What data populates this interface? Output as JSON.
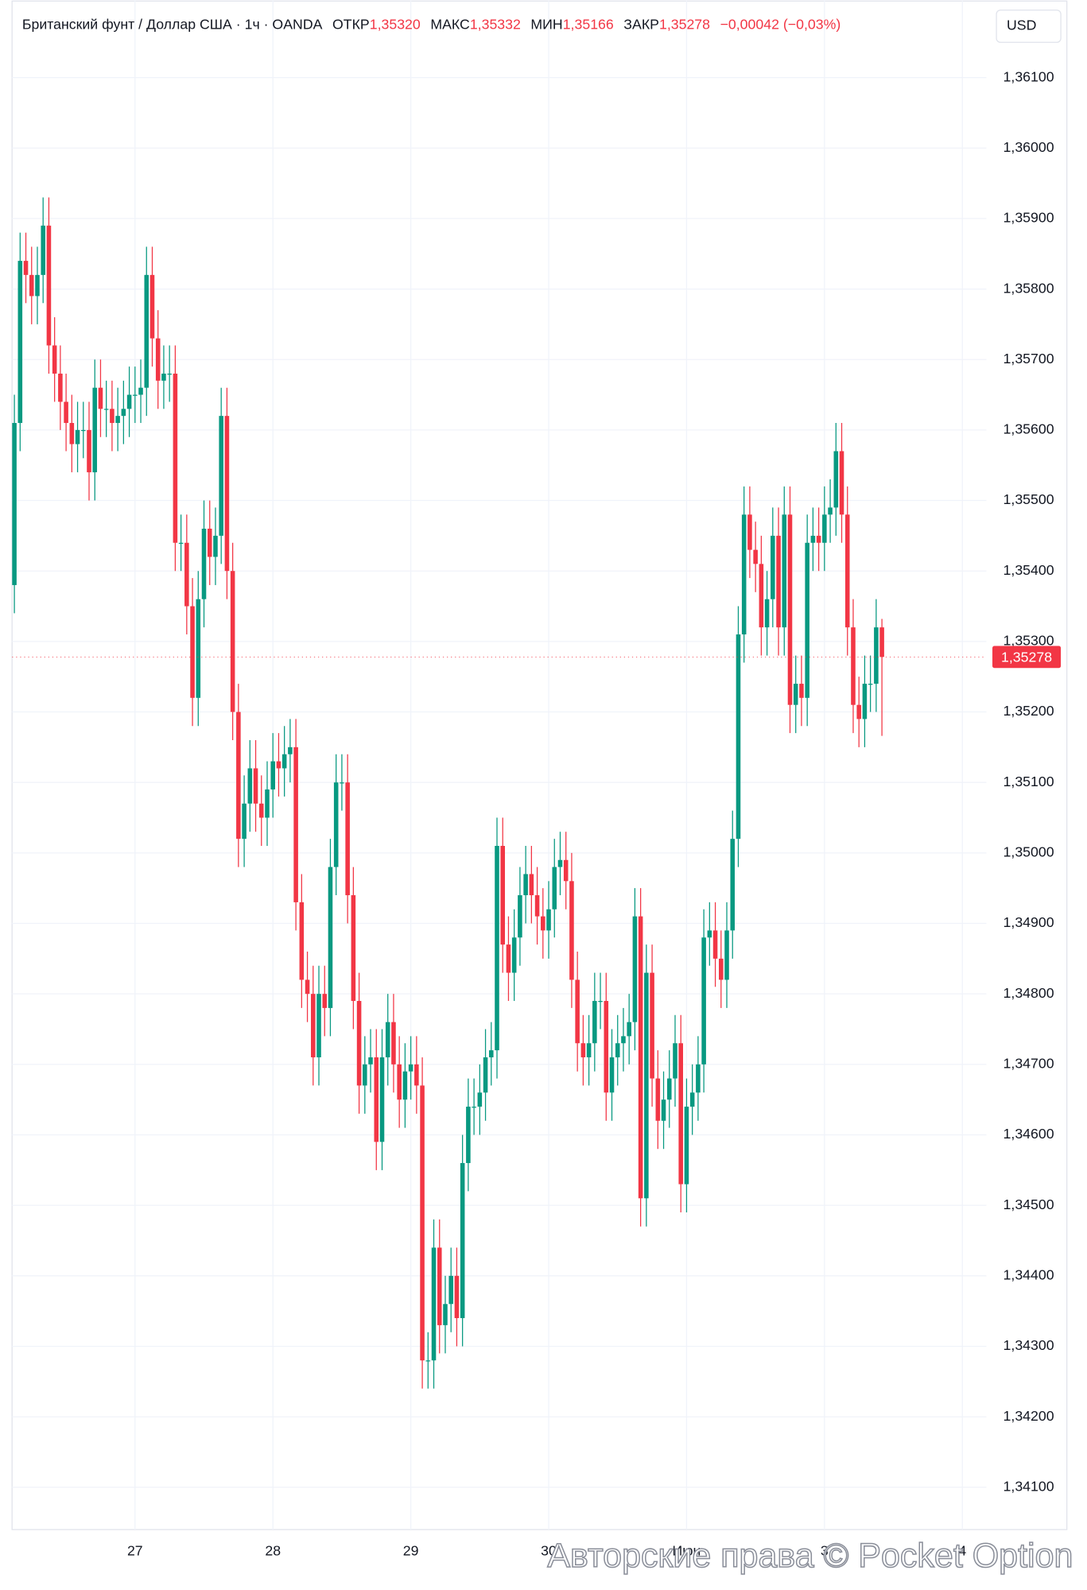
{
  "chart_data": {
    "type": "candlestick",
    "title": "Британский фунт / Доллар США · 1ч · OANDA",
    "header": {
      "open_label": "ОТКР",
      "open": "1,35320",
      "high_label": "МАКС",
      "high": "1,35332",
      "low_label": "МИН",
      "low": "1,35166",
      "close_label": "ЗАКР",
      "close": "1,35278",
      "change": "−0,00042 (−0,03%)"
    },
    "currency": "USD",
    "last_price_label": "1,35278",
    "watermark": "Авторские права © Pocket Option",
    "up_color": "#089981",
    "down_color": "#f23645",
    "grid": true,
    "xlim": [
      2.6,
      171.3
    ],
    "xticks": [
      {
        "value": 24,
        "label": "27"
      },
      {
        "value": 48,
        "label": "28"
      },
      {
        "value": 72,
        "label": "29"
      },
      {
        "value": 96,
        "label": "30"
      },
      {
        "value": 120,
        "label": "Июн"
      },
      {
        "value": 144,
        "label": "3"
      },
      {
        "value": 168,
        "label": "4"
      }
    ],
    "ylim": [
      1.3404,
      1.3621
    ],
    "yticks": [
      {
        "value": 1.361,
        "label": "1,36100"
      },
      {
        "value": 1.36,
        "label": "1,36000"
      },
      {
        "value": 1.359,
        "label": "1,35900"
      },
      {
        "value": 1.358,
        "label": "1,35800"
      },
      {
        "value": 1.357,
        "label": "1,35700"
      },
      {
        "value": 1.356,
        "label": "1,35600"
      },
      {
        "value": 1.355,
        "label": "1,35500"
      },
      {
        "value": 1.354,
        "label": "1,35400"
      },
      {
        "value": 1.353,
        "label": "1,35300"
      },
      {
        "value": 1.352,
        "label": "1,35200"
      },
      {
        "value": 1.351,
        "label": "1,35100"
      },
      {
        "value": 1.35,
        "label": "1,35000"
      },
      {
        "value": 1.349,
        "label": "1,34900"
      },
      {
        "value": 1.348,
        "label": "1,34800"
      },
      {
        "value": 1.347,
        "label": "1,34700"
      },
      {
        "value": 1.346,
        "label": "1,34600"
      },
      {
        "value": 1.345,
        "label": "1,34500"
      },
      {
        "value": 1.344,
        "label": "1,34400"
      },
      {
        "value": 1.343,
        "label": "1,34300"
      },
      {
        "value": 1.342,
        "label": "1,34200"
      },
      {
        "value": 1.341,
        "label": "1,34100"
      }
    ],
    "x": [
      3,
      4,
      5,
      6,
      7,
      8,
      9,
      10,
      11,
      12,
      13,
      14,
      15,
      16,
      17,
      18,
      19,
      20,
      21,
      22,
      23,
      24,
      25,
      26,
      27,
      28,
      29,
      30,
      31,
      32,
      33,
      34,
      35,
      36,
      37,
      38,
      39,
      40,
      41,
      42,
      43,
      44,
      45,
      46,
      47,
      48,
      49,
      50,
      51,
      52,
      53,
      54,
      55,
      56,
      57,
      58,
      59,
      60,
      61,
      62,
      63,
      64,
      65,
      66,
      67,
      68,
      69,
      70,
      71,
      72,
      73,
      74,
      75,
      76,
      77,
      78,
      79,
      80,
      81,
      82,
      83,
      84,
      85,
      86,
      87,
      88,
      89,
      90,
      91,
      92,
      93,
      94,
      95,
      96,
      97,
      98,
      99,
      100,
      101,
      102,
      103,
      104,
      105,
      106,
      107,
      108,
      109,
      110,
      111,
      112,
      113,
      114,
      115,
      116,
      117,
      118,
      119,
      120,
      121,
      122,
      123,
      124,
      125,
      126,
      127,
      128,
      129,
      130,
      131,
      132,
      133,
      134,
      135,
      136,
      137,
      138,
      139,
      140,
      141,
      142,
      143,
      144,
      145,
      146,
      147,
      148,
      149,
      150,
      151,
      152,
      153,
      154
    ],
    "open": [
      1.3538,
      1.3561,
      1.3584,
      1.3582,
      1.3579,
      1.3582,
      1.3589,
      1.3572,
      1.3568,
      1.3564,
      1.3561,
      1.3558,
      1.356,
      1.356,
      1.3554,
      1.3566,
      1.3563,
      1.3563,
      1.3561,
      1.3562,
      1.3563,
      1.3565,
      1.3565,
      1.3566,
      1.3582,
      1.3573,
      1.3567,
      1.3568,
      1.3568,
      1.3544,
      1.3544,
      1.3535,
      1.3522,
      1.3536,
      1.3546,
      1.3542,
      1.3545,
      1.3562,
      1.354,
      1.352,
      1.3502,
      1.3507,
      1.3512,
      1.3507,
      1.3505,
      1.3509,
      1.3513,
      1.3512,
      1.3514,
      1.3515,
      1.3493,
      1.3482,
      1.348,
      1.3471,
      1.348,
      1.3478,
      1.3498,
      1.351,
      1.351,
      1.3494,
      1.3479,
      1.3467,
      1.347,
      1.3471,
      1.3459,
      1.3471,
      1.3476,
      1.347,
      1.3465,
      1.3469,
      1.347,
      1.3467,
      1.3428,
      1.3428,
      1.3444,
      1.3433,
      1.3436,
      1.344,
      1.3434,
      1.3456,
      1.3464,
      1.3464,
      1.3466,
      1.3471,
      1.3472,
      1.3501,
      1.3487,
      1.3483,
      1.3488,
      1.3494,
      1.3497,
      1.3494,
      1.3491,
      1.3489,
      1.3492,
      1.3498,
      1.3499,
      1.3496,
      1.3482,
      1.3473,
      1.3471,
      1.3473,
      1.3479,
      1.3479,
      1.3466,
      1.3471,
      1.3473,
      1.3474,
      1.3476,
      1.3491,
      1.3451,
      1.3483,
      1.3468,
      1.3462,
      1.3465,
      1.3468,
      1.3473,
      1.3453,
      1.3464,
      1.3466,
      1.347,
      1.3488,
      1.3489,
      1.3485,
      1.3482,
      1.3489,
      1.3502,
      1.3531,
      1.3548,
      1.3543,
      1.3541,
      1.3532,
      1.3536,
      1.3545,
      1.3532,
      1.3548,
      1.3521,
      1.3524,
      1.3522,
      1.3544,
      1.3545,
      1.3544,
      1.3548,
      1.3549,
      1.3557,
      1.3548,
      1.3532,
      1.3521,
      1.3519,
      1.3524,
      1.3524,
      1.3532
    ],
    "high": [
      1.3565,
      1.3588,
      1.3588,
      1.3586,
      1.3586,
      1.3593,
      1.3593,
      1.3576,
      1.3572,
      1.3568,
      1.3565,
      1.3564,
      1.3564,
      1.3564,
      1.357,
      1.357,
      1.3567,
      1.3567,
      1.3566,
      1.3567,
      1.3569,
      1.3569,
      1.357,
      1.3586,
      1.3586,
      1.3577,
      1.3572,
      1.3572,
      1.3572,
      1.3548,
      1.3548,
      1.3539,
      1.354,
      1.355,
      1.355,
      1.3549,
      1.3566,
      1.3566,
      1.3544,
      1.3524,
      1.3511,
      1.3516,
      1.3516,
      1.3511,
      1.3513,
      1.3517,
      1.3517,
      1.3518,
      1.3519,
      1.3519,
      1.3497,
      1.3486,
      1.3484,
      1.3484,
      1.3484,
      1.3502,
      1.3514,
      1.3514,
      1.3514,
      1.3498,
      1.3483,
      1.3474,
      1.3475,
      1.3475,
      1.3475,
      1.348,
      1.348,
      1.3474,
      1.3473,
      1.3474,
      1.3474,
      1.3471,
      1.3432,
      1.3448,
      1.3448,
      1.344,
      1.3444,
      1.3444,
      1.346,
      1.3468,
      1.3468,
      1.347,
      1.3475,
      1.3476,
      1.3505,
      1.3505,
      1.3491,
      1.3492,
      1.3498,
      1.3501,
      1.3501,
      1.3498,
      1.3495,
      1.3496,
      1.3502,
      1.3503,
      1.3503,
      1.35,
      1.3486,
      1.3477,
      1.3477,
      1.3483,
      1.3483,
      1.3483,
      1.3475,
      1.3477,
      1.3478,
      1.348,
      1.3495,
      1.3495,
      1.3487,
      1.3487,
      1.3472,
      1.3469,
      1.3472,
      1.3477,
      1.3477,
      1.3468,
      1.347,
      1.3474,
      1.3492,
      1.3493,
      1.3493,
      1.3489,
      1.3493,
      1.3506,
      1.3535,
      1.3552,
      1.3552,
      1.3547,
      1.3545,
      1.354,
      1.3549,
      1.3549,
      1.3552,
      1.3552,
      1.3528,
      1.3528,
      1.3548,
      1.3549,
      1.3549,
      1.3552,
      1.3553,
      1.3561,
      1.3561,
      1.3552,
      1.3536,
      1.3525,
      1.3528,
      1.3528,
      1.3536,
      1.35332
    ],
    "low": [
      1.3534,
      1.3557,
      1.3578,
      1.3575,
      1.3575,
      1.3578,
      1.3568,
      1.3564,
      1.356,
      1.3557,
      1.3554,
      1.3554,
      1.3556,
      1.355,
      1.355,
      1.3559,
      1.3559,
      1.3557,
      1.3557,
      1.3558,
      1.3559,
      1.3561,
      1.3561,
      1.3562,
      1.3569,
      1.3563,
      1.3563,
      1.3564,
      1.354,
      1.354,
      1.3531,
      1.3518,
      1.3518,
      1.3532,
      1.3538,
      1.3538,
      1.3541,
      1.3536,
      1.3516,
      1.3498,
      1.3498,
      1.3503,
      1.3503,
      1.3501,
      1.3501,
      1.3505,
      1.3508,
      1.3508,
      1.351,
      1.3489,
      1.3478,
      1.3476,
      1.3467,
      1.3467,
      1.3474,
      1.3474,
      1.3494,
      1.3506,
      1.349,
      1.3475,
      1.3463,
      1.3463,
      1.3466,
      1.3455,
      1.3455,
      1.3467,
      1.3466,
      1.3461,
      1.3461,
      1.3465,
      1.3463,
      1.3424,
      1.3424,
      1.3424,
      1.3429,
      1.3429,
      1.3432,
      1.343,
      1.343,
      1.3452,
      1.346,
      1.346,
      1.3462,
      1.3467,
      1.3468,
      1.3483,
      1.3479,
      1.3479,
      1.3484,
      1.349,
      1.349,
      1.3487,
      1.3485,
      1.3485,
      1.3488,
      1.3494,
      1.3492,
      1.3478,
      1.3469,
      1.3467,
      1.3467,
      1.3469,
      1.3475,
      1.3462,
      1.3462,
      1.3467,
      1.3469,
      1.347,
      1.3472,
      1.3447,
      1.3447,
      1.3464,
      1.3458,
      1.3458,
      1.3461,
      1.3464,
      1.3449,
      1.3449,
      1.346,
      1.3462,
      1.3466,
      1.3484,
      1.3481,
      1.3478,
      1.3478,
      1.3485,
      1.3498,
      1.3527,
      1.3539,
      1.3537,
      1.3528,
      1.3528,
      1.3532,
      1.3528,
      1.3528,
      1.3517,
      1.3517,
      1.3518,
      1.3518,
      1.354,
      1.354,
      1.354,
      1.3544,
      1.3545,
      1.3544,
      1.3528,
      1.3517,
      1.3515,
      1.3515,
      1.352,
      1.352,
      1.35166
    ],
    "close": [
      1.3561,
      1.3584,
      1.3582,
      1.3579,
      1.3582,
      1.3589,
      1.3572,
      1.3568,
      1.3564,
      1.3561,
      1.3558,
      1.356,
      1.356,
      1.3554,
      1.3566,
      1.3563,
      1.3563,
      1.3561,
      1.3562,
      1.3563,
      1.3565,
      1.3565,
      1.3566,
      1.3582,
      1.3573,
      1.3567,
      1.3568,
      1.3568,
      1.3544,
      1.3544,
      1.3535,
      1.3522,
      1.3536,
      1.3546,
      1.3542,
      1.3545,
      1.3562,
      1.354,
      1.352,
      1.3502,
      1.3507,
      1.3512,
      1.3507,
      1.3505,
      1.3509,
      1.3513,
      1.3512,
      1.3514,
      1.3515,
      1.3493,
      1.3482,
      1.348,
      1.3471,
      1.348,
      1.3478,
      1.3498,
      1.351,
      1.351,
      1.3494,
      1.3479,
      1.3467,
      1.347,
      1.3471,
      1.3459,
      1.3471,
      1.3476,
      1.347,
      1.3465,
      1.3469,
      1.347,
      1.3467,
      1.3428,
      1.3428,
      1.3444,
      1.3433,
      1.3436,
      1.344,
      1.3434,
      1.3456,
      1.3464,
      1.3464,
      1.3466,
      1.3471,
      1.3472,
      1.3501,
      1.3487,
      1.3483,
      1.3488,
      1.3494,
      1.3497,
      1.3494,
      1.3491,
      1.3489,
      1.3492,
      1.3498,
      1.3499,
      1.3496,
      1.3482,
      1.3473,
      1.3471,
      1.3473,
      1.3479,
      1.3479,
      1.3466,
      1.3471,
      1.3473,
      1.3474,
      1.3476,
      1.3491,
      1.3451,
      1.3483,
      1.3468,
      1.3462,
      1.3465,
      1.3468,
      1.3473,
      1.3453,
      1.3464,
      1.3466,
      1.347,
      1.3488,
      1.3489,
      1.3485,
      1.3482,
      1.3489,
      1.3502,
      1.3531,
      1.3548,
      1.3543,
      1.3541,
      1.3532,
      1.3536,
      1.3545,
      1.3532,
      1.3548,
      1.3521,
      1.3524,
      1.3522,
      1.3544,
      1.3545,
      1.3544,
      1.3548,
      1.3549,
      1.3557,
      1.3548,
      1.3532,
      1.3521,
      1.3519,
      1.3524,
      1.3524,
      1.3532,
      1.35278
    ]
  }
}
